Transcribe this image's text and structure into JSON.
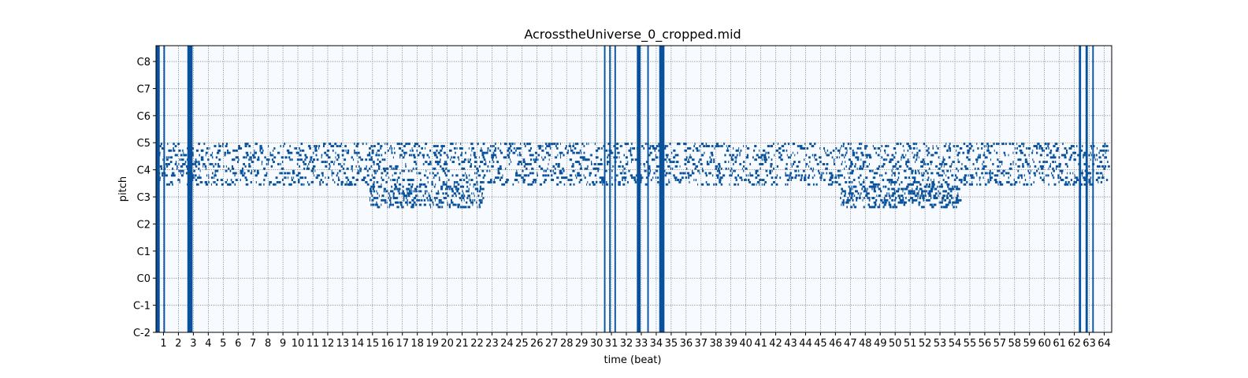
{
  "chart_data": {
    "type": "heatmap",
    "subtype": "piano-roll",
    "title": "AcrosstheUniverse_0_cropped.mid",
    "xlabel": "time (beat)",
    "ylabel": "pitch",
    "xlim": [
      0.5,
      64.5
    ],
    "ylim": [
      0,
      127
    ],
    "x_ticks": [
      1,
      2,
      3,
      4,
      5,
      6,
      7,
      8,
      9,
      10,
      11,
      12,
      13,
      14,
      15,
      16,
      17,
      18,
      19,
      20,
      21,
      22,
      23,
      24,
      25,
      26,
      27,
      28,
      29,
      30,
      31,
      32,
      33,
      34,
      35,
      36,
      37,
      38,
      39,
      40,
      41,
      42,
      43,
      44,
      45,
      46,
      47,
      48,
      49,
      50,
      51,
      52,
      53,
      54,
      55,
      56,
      57,
      58,
      59,
      60,
      61,
      62,
      63,
      64
    ],
    "y_ticks": [
      {
        "label": "C-2",
        "pitch": 0
      },
      {
        "label": "C-1",
        "pitch": 12
      },
      {
        "label": "C0",
        "pitch": 24
      },
      {
        "label": "C1",
        "pitch": 36
      },
      {
        "label": "C2",
        "pitch": 48
      },
      {
        "label": "C3",
        "pitch": 60
      },
      {
        "label": "C4",
        "pitch": 72
      },
      {
        "label": "C5",
        "pitch": 84
      },
      {
        "label": "C6",
        "pitch": 96
      },
      {
        "label": "C7",
        "pitch": 108
      },
      {
        "label": "C8",
        "pitch": 120
      }
    ],
    "grid": true,
    "colors": {
      "background": "#f7fbff",
      "note": "#08519c",
      "note_light": "#2171b5",
      "grid": "#555555"
    },
    "percussion_bands": [
      {
        "start": 0.52,
        "end": 0.75
      },
      {
        "start": 1.0,
        "end": 1.1
      },
      {
        "start": 2.6,
        "end": 2.95
      },
      {
        "start": 30.5,
        "end": 30.6
      },
      {
        "start": 30.85,
        "end": 30.95
      },
      {
        "start": 31.2,
        "end": 31.3
      },
      {
        "start": 32.7,
        "end": 32.95
      },
      {
        "start": 33.4,
        "end": 33.5
      },
      {
        "start": 34.2,
        "end": 34.55
      },
      {
        "start": 62.3,
        "end": 62.45
      },
      {
        "start": 62.75,
        "end": 62.9
      },
      {
        "start": 63.2,
        "end": 63.3
      }
    ],
    "note_regions": [
      {
        "name": "melody-chords",
        "x_start": 0.5,
        "x_end": 64.3,
        "pitch_low": 65,
        "pitch_high": 84
      },
      {
        "name": "bass-section-a",
        "x_start": 14.8,
        "x_end": 22.4,
        "pitch_low": 55,
        "pitch_high": 65
      },
      {
        "name": "bass-section-b",
        "x_start": 46.3,
        "x_end": 54.4,
        "pitch_low": 55,
        "pitch_high": 65
      }
    ]
  }
}
